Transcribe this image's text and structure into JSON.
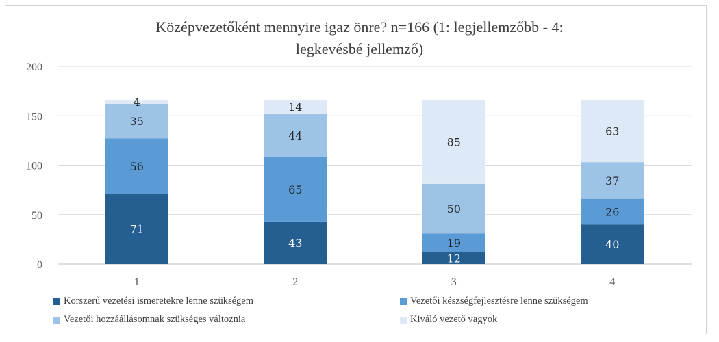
{
  "chart_data": {
    "type": "bar",
    "stacked": true,
    "title": "Középvezetőként mennyire igaz önre? n=166 (1: legjellemzőbb - 4: legkevésbé jellemző)",
    "title_lines": [
      "Középvezetőként mennyire igaz önre? n=166 (1: legjellemzőbb - 4:",
      "legkevésbé jellemző)"
    ],
    "categories": [
      "1",
      "2",
      "3",
      "4"
    ],
    "series": [
      {
        "name": "Korszerű vezetési ismeretekre lenne szükségem",
        "color": "#255e91",
        "label_color": "#ffffff",
        "values": [
          71,
          43,
          12,
          40
        ]
      },
      {
        "name": "Vezetői készségfejlesztésre lenne szükségem",
        "color": "#5b9bd5",
        "label_color": "#1f1f1f",
        "values": [
          56,
          65,
          19,
          26
        ]
      },
      {
        "name": "Vezetői hozzáállásomnak szükséges változnia",
        "color": "#9dc3e6",
        "label_color": "#262626",
        "values": [
          35,
          44,
          50,
          37
        ]
      },
      {
        "name": "Kiváló vezető vagyok",
        "color": "#dde9f6",
        "label_color": "#262626",
        "values": [
          4,
          14,
          85,
          63
        ]
      }
    ],
    "ylim": [
      0,
      200
    ],
    "yticks": [
      0,
      50,
      100,
      150,
      200
    ],
    "grid": true,
    "legend_position": "bottom",
    "xlabel": "",
    "ylabel": ""
  }
}
